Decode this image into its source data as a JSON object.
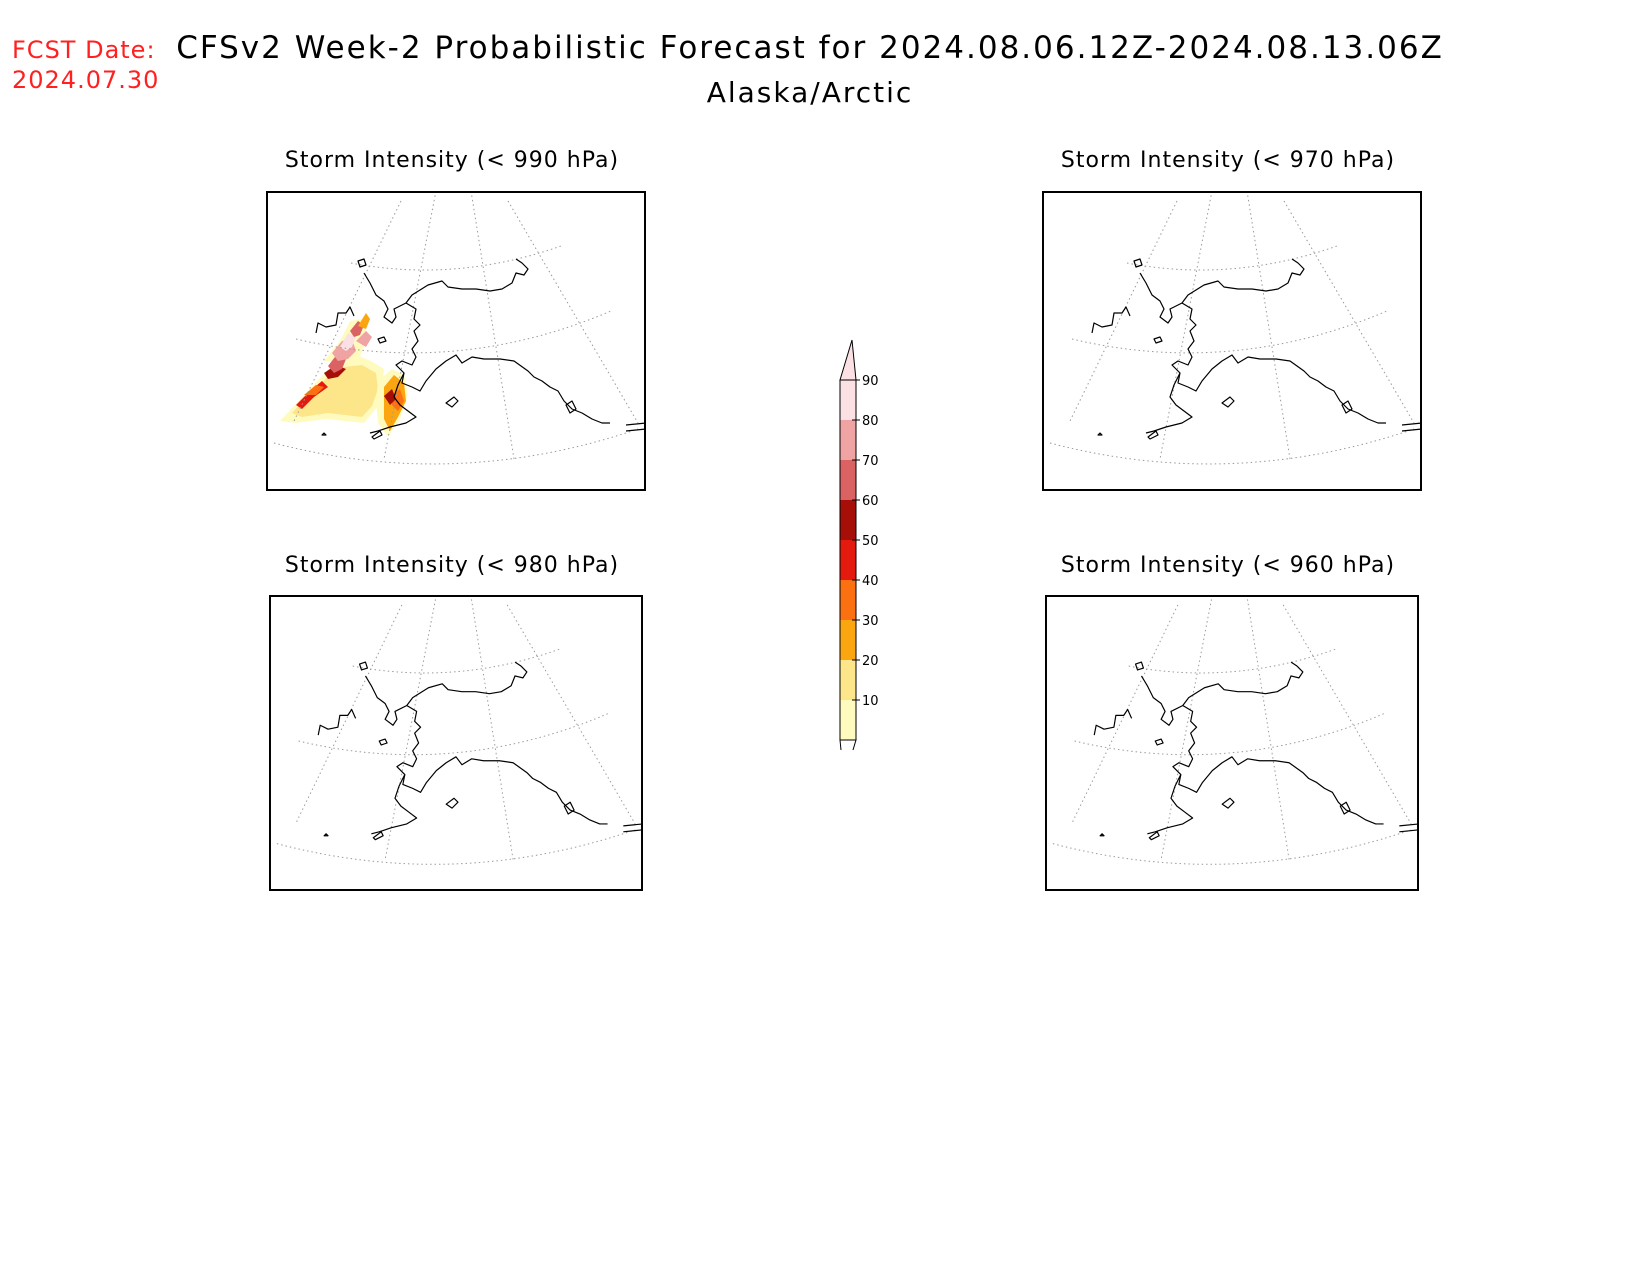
{
  "header": {
    "fcst_label": "FCST Date:",
    "fcst_date": "2024.07.30",
    "title": "CFSv2 Week-2 Probabilistic Forecast for 2024.08.06.12Z-2024.08.13.06Z",
    "subtitle": "Alaska/Arctic"
  },
  "panels": [
    {
      "title": "Storm Intensity (< 990 hPa)",
      "has_shading": true
    },
    {
      "title": "Storm Intensity (< 970 hPa)",
      "has_shading": false
    },
    {
      "title": "Storm Intensity (< 980 hPa)",
      "has_shading": false
    },
    {
      "title": "Storm Intensity (< 960 hPa)",
      "has_shading": false
    }
  ],
  "colorbar": {
    "levels": [
      "10",
      "20",
      "30",
      "40",
      "50",
      "60",
      "70",
      "80",
      "90"
    ],
    "colors": [
      "#fffbbf",
      "#fde68a",
      "#fba511",
      "#fb7010",
      "#e41a0e",
      "#a50f08",
      "#da6263",
      "#f0a3a3",
      "#fce1e4"
    ]
  }
}
